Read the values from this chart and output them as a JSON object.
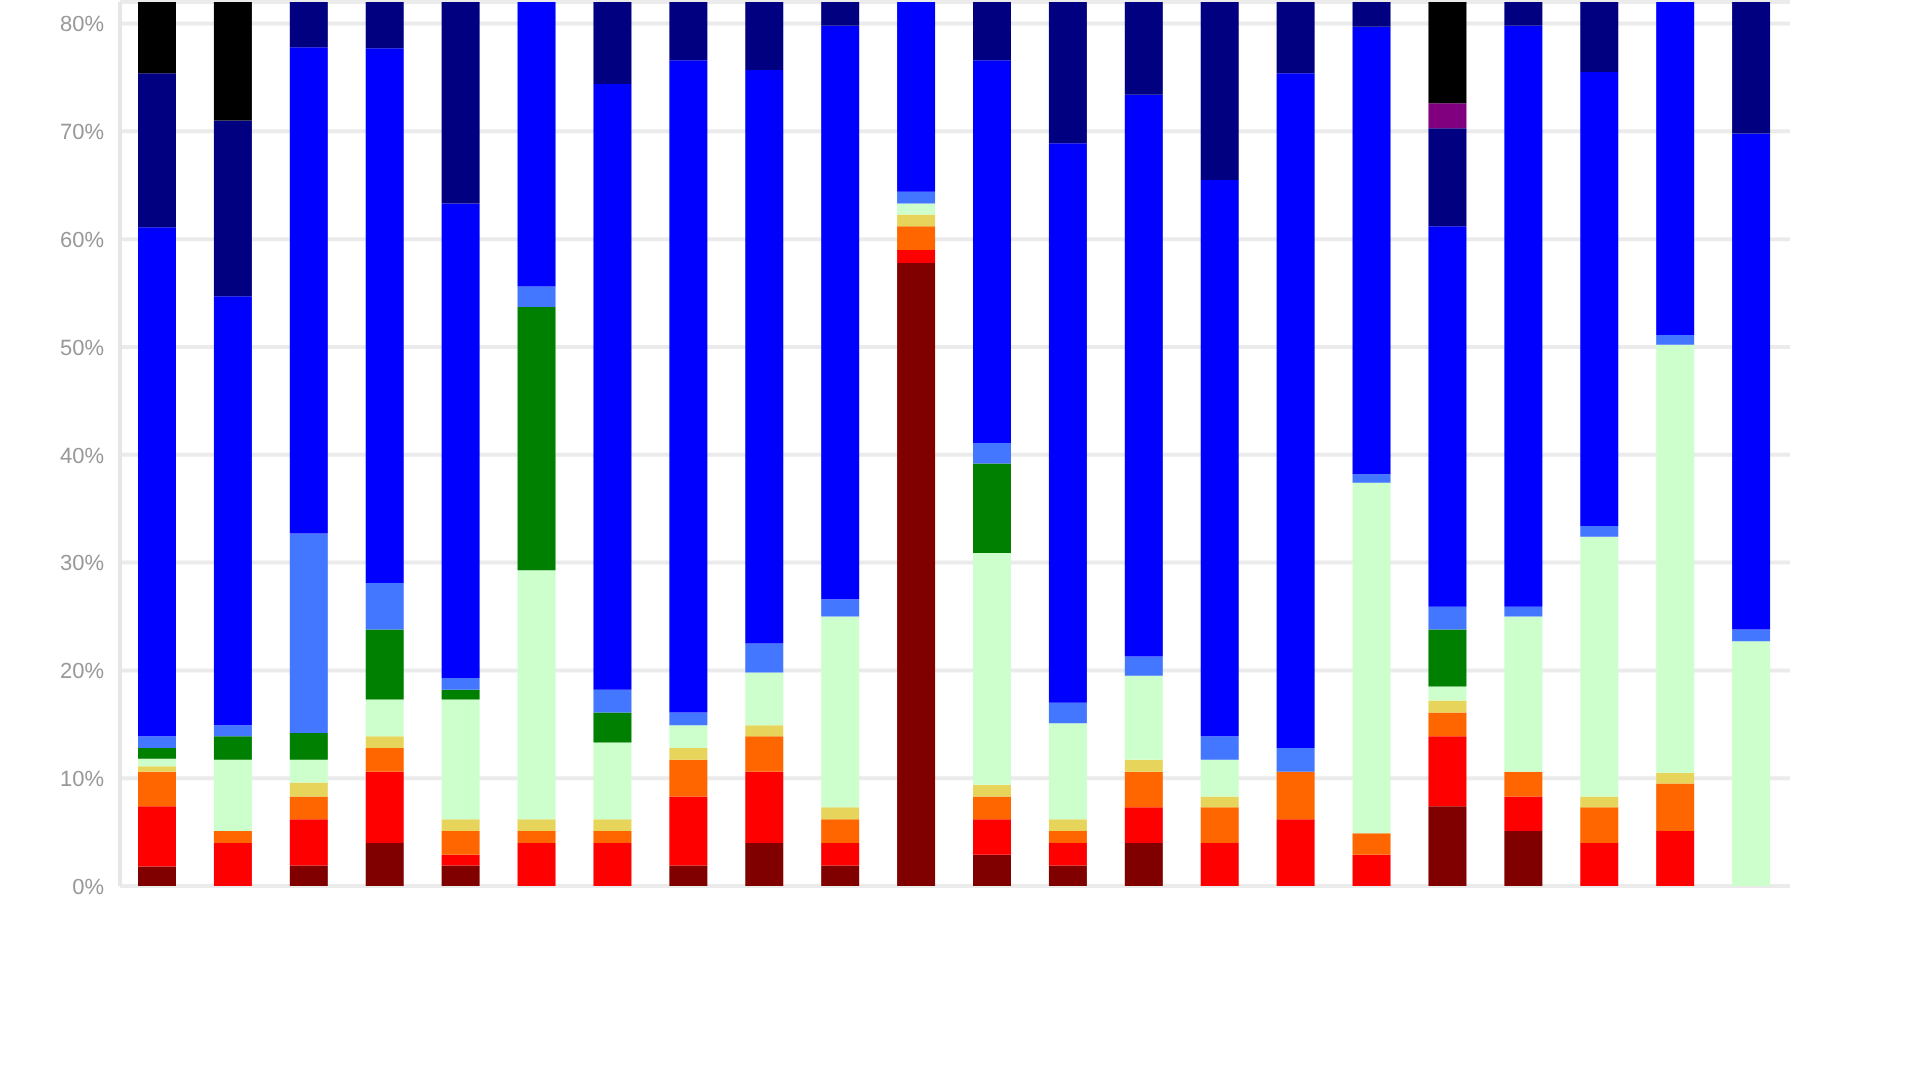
{
  "chart_data": {
    "type": "bar",
    "stacked": true,
    "categories": [
      null,
      null,
      null,
      null,
      null,
      null,
      null,
      null,
      null,
      null,
      null,
      null,
      null,
      null,
      null,
      null,
      null,
      null,
      null,
      null,
      null,
      null
    ],
    "series": [
      {
        "color": "#800000",
        "values": [
          1.8,
          0,
          1.9,
          4.0,
          1.9,
          0,
          0,
          1.9,
          4.0,
          1.9,
          57.8,
          2.9,
          1.9,
          4.0,
          0,
          0,
          0,
          7.4,
          5.1,
          0,
          0,
          0
        ]
      },
      {
        "color": "#ff0000",
        "values": [
          5.6,
          4.0,
          4.3,
          6.6,
          1.0,
          4.0,
          4.0,
          6.4,
          6.6,
          2.1,
          1.2,
          3.3,
          2.1,
          3.3,
          4.0,
          6.2,
          2.9,
          6.5,
          3.2,
          4.0,
          5.1,
          0
        ]
      },
      {
        "color": "#ff6600",
        "values": [
          3.2,
          1.1,
          2.1,
          2.2,
          2.2,
          1.1,
          1.1,
          3.4,
          3.3,
          2.2,
          2.2,
          2.1,
          1.1,
          3.3,
          3.3,
          4.4,
          2.0,
          2.2,
          2.3,
          3.3,
          4.4,
          0
        ]
      },
      {
        "color": "#e6d55a",
        "values": [
          0.5,
          0,
          1.3,
          1.1,
          1.1,
          1.1,
          1.1,
          1.1,
          1.0,
          1.1,
          1.1,
          1.1,
          1.1,
          1.1,
          1.0,
          0,
          0,
          1.1,
          0,
          1.0,
          1.0,
          0
        ]
      },
      {
        "color": "#ccffcc",
        "values": [
          0.7,
          6.6,
          2.1,
          3.4,
          11.1,
          23.1,
          7.1,
          2.1,
          4.9,
          17.7,
          1.0,
          21.5,
          8.9,
          7.8,
          3.4,
          0,
          32.5,
          1.3,
          14.4,
          24.1,
          39.7,
          22.7
        ]
      },
      {
        "color": "#008000",
        "values": [
          1.0,
          2.2,
          2.5,
          6.5,
          0.9,
          24.4,
          2.8,
          0,
          0,
          0,
          0,
          8.3,
          0,
          0,
          0,
          0,
          0,
          5.3,
          0,
          0,
          0,
          0
        ]
      },
      {
        "color": "#4477ff",
        "values": [
          1.1,
          1.0,
          18.5,
          4.3,
          1.1,
          1.9,
          2.1,
          1.2,
          2.7,
          1.6,
          1.1,
          1.9,
          1.9,
          1.8,
          2.2,
          2.2,
          0.8,
          2.1,
          0.9,
          1.0,
          0.9,
          1.1
        ]
      },
      {
        "color": "#0000ff",
        "values": [
          47.2,
          39.8,
          45.1,
          49.6,
          44.0,
          26.4,
          56.2,
          60.5,
          53.2,
          53.2,
          17.6,
          35.5,
          51.9,
          52.1,
          51.6,
          62.6,
          41.5,
          35.3,
          53.9,
          42.1,
          30.9,
          46.0
        ]
      },
      {
        "color": "#000080",
        "values": [
          14.3,
          16.3,
          4.2,
          4.3,
          18.7,
          0,
          7.6,
          5.4,
          6.3,
          2.2,
          0,
          5.4,
          13.1,
          8.6,
          16.5,
          6.6,
          2.3,
          9.1,
          2.2,
          6.5,
          0,
          12.2
        ]
      },
      {
        "color": "#800080",
        "values": [
          0,
          0,
          0,
          0,
          0,
          0,
          0,
          0,
          0,
          0,
          0,
          0,
          0,
          0,
          0,
          0,
          0,
          2.3,
          0,
          0,
          0,
          0
        ]
      },
      {
        "color": "#000000",
        "values": [
          6.6,
          11.0,
          0,
          0,
          0,
          0,
          0,
          0,
          0,
          0,
          0,
          0,
          0,
          0,
          0,
          0,
          0,
          9.4,
          0,
          0,
          0,
          0
        ]
      }
    ],
    "ylim": [
      0,
      82
    ],
    "yticks": [
      {
        "value": 0,
        "label": "0%"
      },
      {
        "value": 10,
        "label": "10%"
      },
      {
        "value": 20,
        "label": "20%"
      },
      {
        "value": 30,
        "label": "30%"
      },
      {
        "value": 40,
        "label": "40%"
      },
      {
        "value": 50,
        "label": "50%"
      },
      {
        "value": 60,
        "label": "60%"
      },
      {
        "value": 70,
        "label": "70%"
      },
      {
        "value": 80,
        "label": "80%"
      }
    ],
    "grid": "y"
  }
}
